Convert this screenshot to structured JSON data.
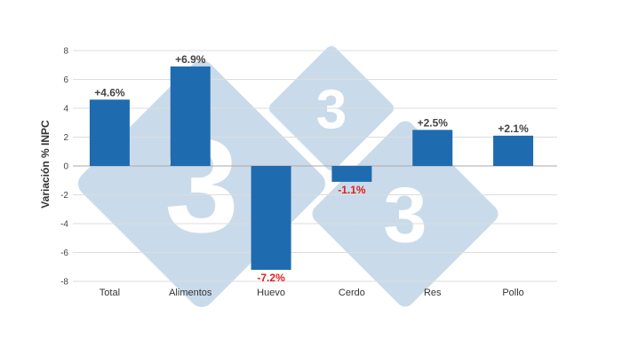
{
  "chart_data": {
    "type": "bar",
    "categories": [
      "Total",
      "Alimentos",
      "Huevo",
      "Cerdo",
      "Res",
      "Pollo"
    ],
    "values": [
      4.6,
      6.9,
      -7.2,
      -1.1,
      2.5,
      2.1
    ],
    "data_labels": [
      "+4.6%",
      "+6.9%",
      "-7.2%",
      "-1.1%",
      "+2.5%",
      "+2.1%"
    ],
    "title": "",
    "xlabel": "",
    "ylabel": "Variación % INPC",
    "ylim": [
      -8,
      8
    ],
    "yticks": [
      8,
      6,
      4,
      2,
      0,
      -2,
      -4,
      -6,
      -8
    ],
    "grid": true,
    "legend": "none",
    "colors": {
      "bar": "#1f6bb0",
      "positive_label": "#444444",
      "negative_label": "#e0201c",
      "grid": "#dddddd",
      "zero_line": "#aaaaaa",
      "watermark": "#c9dbea"
    }
  },
  "watermark": {
    "digit": "3",
    "icon": "diamond-3-logo-icon"
  }
}
